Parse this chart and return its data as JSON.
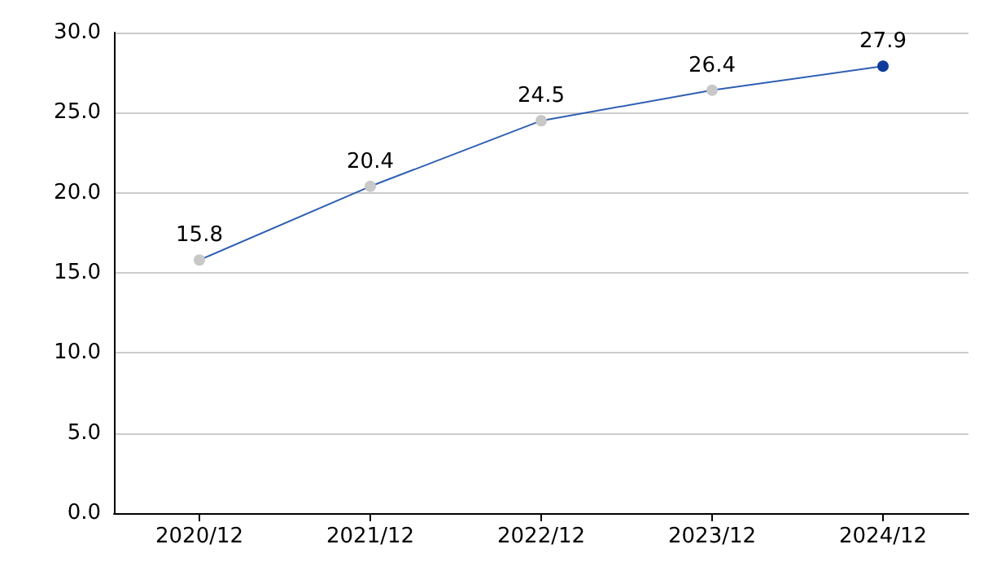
{
  "chart_data": {
    "type": "line",
    "categories": [
      "2020/12",
      "2021/12",
      "2022/12",
      "2023/12",
      "2024/12"
    ],
    "series": [
      {
        "color": "#2f5fb3",
        "colors": [
          "#c8c8c8",
          "#c8c8c8",
          "#c8c8c8",
          "#c8c8c8",
          "#0d3c9c"
        ],
        "values": [
          15.8,
          20.4,
          24.5,
          26.4,
          27.9
        ]
      }
    ],
    "ylim": [
      0,
      30
    ],
    "yticks": [
      {
        "value": 0,
        "label": "0.0"
      },
      {
        "value": 5,
        "label": "5.0"
      },
      {
        "value": 10,
        "label": "10.0"
      },
      {
        "value": 15,
        "label": "15.0"
      },
      {
        "value": 20,
        "label": "20.0"
      },
      {
        "value": 25,
        "label": "25.0"
      },
      {
        "value": 30,
        "label": "30.0"
      }
    ],
    "grid": "y",
    "marker": "circle",
    "line_style": "solid",
    "data_labels": true
  }
}
